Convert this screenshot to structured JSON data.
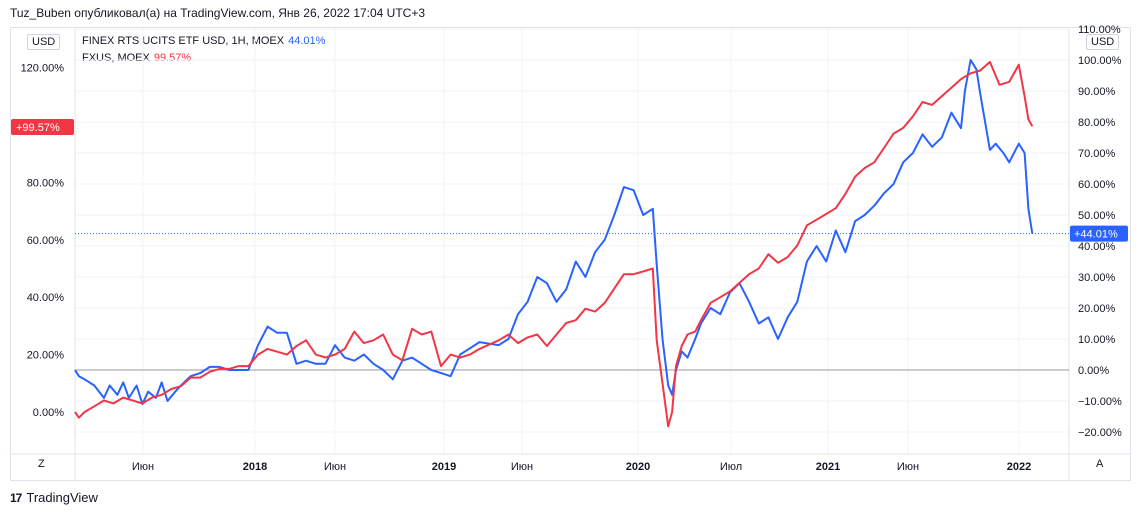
{
  "header": {
    "text": "Tuz_Buben опубликовал(а) на TradingView.com, Янв 26, 2022 17:04 UTC+3"
  },
  "currency_left": "USD",
  "currency_right": "USD",
  "legend": [
    {
      "label": "FINEX RTS UCITS ETF USD, 1H, MOEX",
      "value": "44.01%",
      "color": "#2962ff"
    },
    {
      "label": "FXUS, MOEX",
      "value": "99.57%",
      "color": "#f23645"
    }
  ],
  "corner_left": "Z",
  "corner_right": "A",
  "footer": {
    "brand": "TradingView",
    "logo": "17"
  },
  "chart_data": {
    "type": "line",
    "x_ticks": [
      "Июн",
      "2018",
      "Июн",
      "2019",
      "Июн",
      "2020",
      "Июл",
      "2021",
      "Июн",
      "2022"
    ],
    "left_axis": {
      "ticks": [
        "120.00%",
        "80.00%",
        "60.00%",
        "40.00%",
        "20.00%",
        "0.00%"
      ],
      "tick_values": [
        120,
        80,
        60,
        40,
        20,
        0
      ],
      "price_label": "+99.57%",
      "price_value": 99.57,
      "price_color": "#f23645"
    },
    "right_axis": {
      "ticks": [
        "110.00%",
        "100.00%",
        "90.00%",
        "80.00%",
        "70.00%",
        "60.00%",
        "50.00%",
        "40.00%",
        "30.00%",
        "20.00%",
        "10.00%",
        "0.00%",
        "−10.00%",
        "−20.00%"
      ],
      "tick_values": [
        110,
        100,
        90,
        80,
        70,
        60,
        50,
        40,
        30,
        20,
        10,
        0,
        -10,
        -20
      ],
      "price_label": "+44.01%",
      "price_value": 44.01,
      "price_color": "#2962ff"
    },
    "series": [
      {
        "name": "FINEX RTS UCITS ETF USD, 1H, MOEX",
        "axis": "right",
        "color": "#2962ff",
        "x": [
          2017.1,
          2017.12,
          2017.15,
          2017.2,
          2017.25,
          2017.28,
          2017.32,
          2017.35,
          2017.38,
          2017.42,
          2017.45,
          2017.48,
          2017.52,
          2017.55,
          2017.58,
          2017.62,
          2017.65,
          2017.7,
          2017.75,
          2017.8,
          2017.85,
          2017.9,
          2017.95,
          2018.0,
          2018.05,
          2018.1,
          2018.15,
          2018.2,
          2018.25,
          2018.3,
          2018.35,
          2018.4,
          2018.45,
          2018.5,
          2018.55,
          2018.6,
          2018.65,
          2018.7,
          2018.75,
          2018.8,
          2018.85,
          2018.9,
          2018.95,
          2019.0,
          2019.05,
          2019.1,
          2019.15,
          2019.2,
          2019.3,
          2019.35,
          2019.4,
          2019.45,
          2019.5,
          2019.55,
          2019.6,
          2019.65,
          2019.7,
          2019.75,
          2019.8,
          2019.85,
          2019.9,
          2019.95,
          2020.0,
          2020.05,
          2020.1,
          2020.12,
          2020.15,
          2020.18,
          2020.2,
          2020.22,
          2020.25,
          2020.28,
          2020.32,
          2020.35,
          2020.4,
          2020.45,
          2020.5,
          2020.55,
          2020.6,
          2020.65,
          2020.7,
          2020.75,
          2020.8,
          2020.85,
          2020.9,
          2020.95,
          2021.0,
          2021.05,
          2021.1,
          2021.15,
          2021.2,
          2021.25,
          2021.3,
          2021.35,
          2021.4,
          2021.45,
          2021.5,
          2021.55,
          2021.6,
          2021.65,
          2021.7,
          2021.72,
          2021.75,
          2021.78,
          2021.8,
          2021.85,
          2021.88,
          2021.92,
          2021.95,
          2022.0,
          2022.03,
          2022.05,
          2022.07
        ],
        "y": [
          0,
          -2,
          -3,
          -5,
          -9,
          -5,
          -8,
          -4,
          -9,
          -5,
          -11,
          -7,
          -9,
          -4,
          -10,
          -7,
          -5,
          -2,
          -1,
          1,
          1,
          0,
          0,
          0,
          8,
          14,
          12,
          12,
          2,
          3,
          2,
          2,
          8,
          4,
          3,
          5,
          2,
          0,
          -3,
          3,
          4,
          2,
          0,
          -1,
          -2,
          5,
          7,
          9,
          8,
          10,
          18,
          22,
          30,
          28,
          22,
          26,
          35,
          30,
          38,
          42,
          50,
          59,
          58,
          50,
          52,
          34,
          10,
          -5,
          -8,
          0,
          6,
          4,
          10,
          15,
          20,
          18,
          25,
          28,
          22,
          15,
          17,
          10,
          17,
          22,
          35,
          40,
          35,
          45,
          38,
          48,
          50,
          53,
          57,
          60,
          67,
          70,
          76,
          72,
          75,
          83,
          78,
          90,
          100,
          97,
          89,
          71,
          73,
          70,
          67,
          73,
          70,
          52,
          44.01
        ]
      },
      {
        "name": "FXUS, MOEX",
        "axis": "left",
        "color": "#f23645",
        "x": [
          2017.1,
          2017.12,
          2017.15,
          2017.2,
          2017.25,
          2017.3,
          2017.35,
          2017.4,
          2017.45,
          2017.5,
          2017.55,
          2017.6,
          2017.65,
          2017.7,
          2017.75,
          2017.8,
          2017.85,
          2017.9,
          2017.95,
          2018.0,
          2018.05,
          2018.1,
          2018.15,
          2018.2,
          2018.25,
          2018.3,
          2018.35,
          2018.4,
          2018.45,
          2018.5,
          2018.55,
          2018.6,
          2018.65,
          2018.7,
          2018.75,
          2018.8,
          2018.85,
          2018.9,
          2018.95,
          2019.0,
          2019.05,
          2019.1,
          2019.15,
          2019.2,
          2019.3,
          2019.35,
          2019.4,
          2019.45,
          2019.5,
          2019.55,
          2019.6,
          2019.65,
          2019.7,
          2019.75,
          2019.8,
          2019.85,
          2019.9,
          2019.95,
          2020.0,
          2020.05,
          2020.1,
          2020.12,
          2020.15,
          2020.18,
          2020.2,
          2020.22,
          2020.25,
          2020.28,
          2020.32,
          2020.35,
          2020.4,
          2020.45,
          2020.5,
          2020.55,
          2020.6,
          2020.65,
          2020.7,
          2020.75,
          2020.8,
          2020.85,
          2020.9,
          2020.95,
          2021.0,
          2021.05,
          2021.1,
          2021.15,
          2021.2,
          2021.25,
          2021.3,
          2021.35,
          2021.4,
          2021.45,
          2021.5,
          2021.55,
          2021.6,
          2021.65,
          2021.7,
          2021.75,
          2021.8,
          2021.85,
          2021.9,
          2021.95,
          2022.0,
          2022.03,
          2022.05,
          2022.07
        ],
        "y": [
          0,
          -2,
          0,
          2,
          4,
          3,
          5,
          4,
          3,
          5,
          6,
          8,
          9,
          12,
          12,
          14,
          15,
          15,
          16,
          16,
          20,
          22,
          21,
          20,
          23,
          25,
          20,
          19,
          20,
          22,
          28,
          24,
          25,
          27,
          20,
          18,
          29,
          27,
          28,
          16,
          20,
          19,
          20,
          22,
          25,
          27,
          24,
          26,
          27,
          23,
          27,
          31,
          32,
          36,
          35,
          38,
          43,
          48,
          48,
          49,
          50,
          25,
          10,
          -5,
          0,
          16,
          23,
          27,
          28,
          32,
          38,
          40,
          42,
          45,
          48,
          50,
          55,
          52,
          54,
          58,
          65,
          67,
          69,
          71,
          76,
          82,
          85,
          87,
          92,
          97,
          99,
          103,
          108,
          107,
          110,
          113,
          116,
          118,
          119,
          122,
          114,
          115,
          121,
          110,
          102,
          99.57
        ]
      }
    ]
  }
}
